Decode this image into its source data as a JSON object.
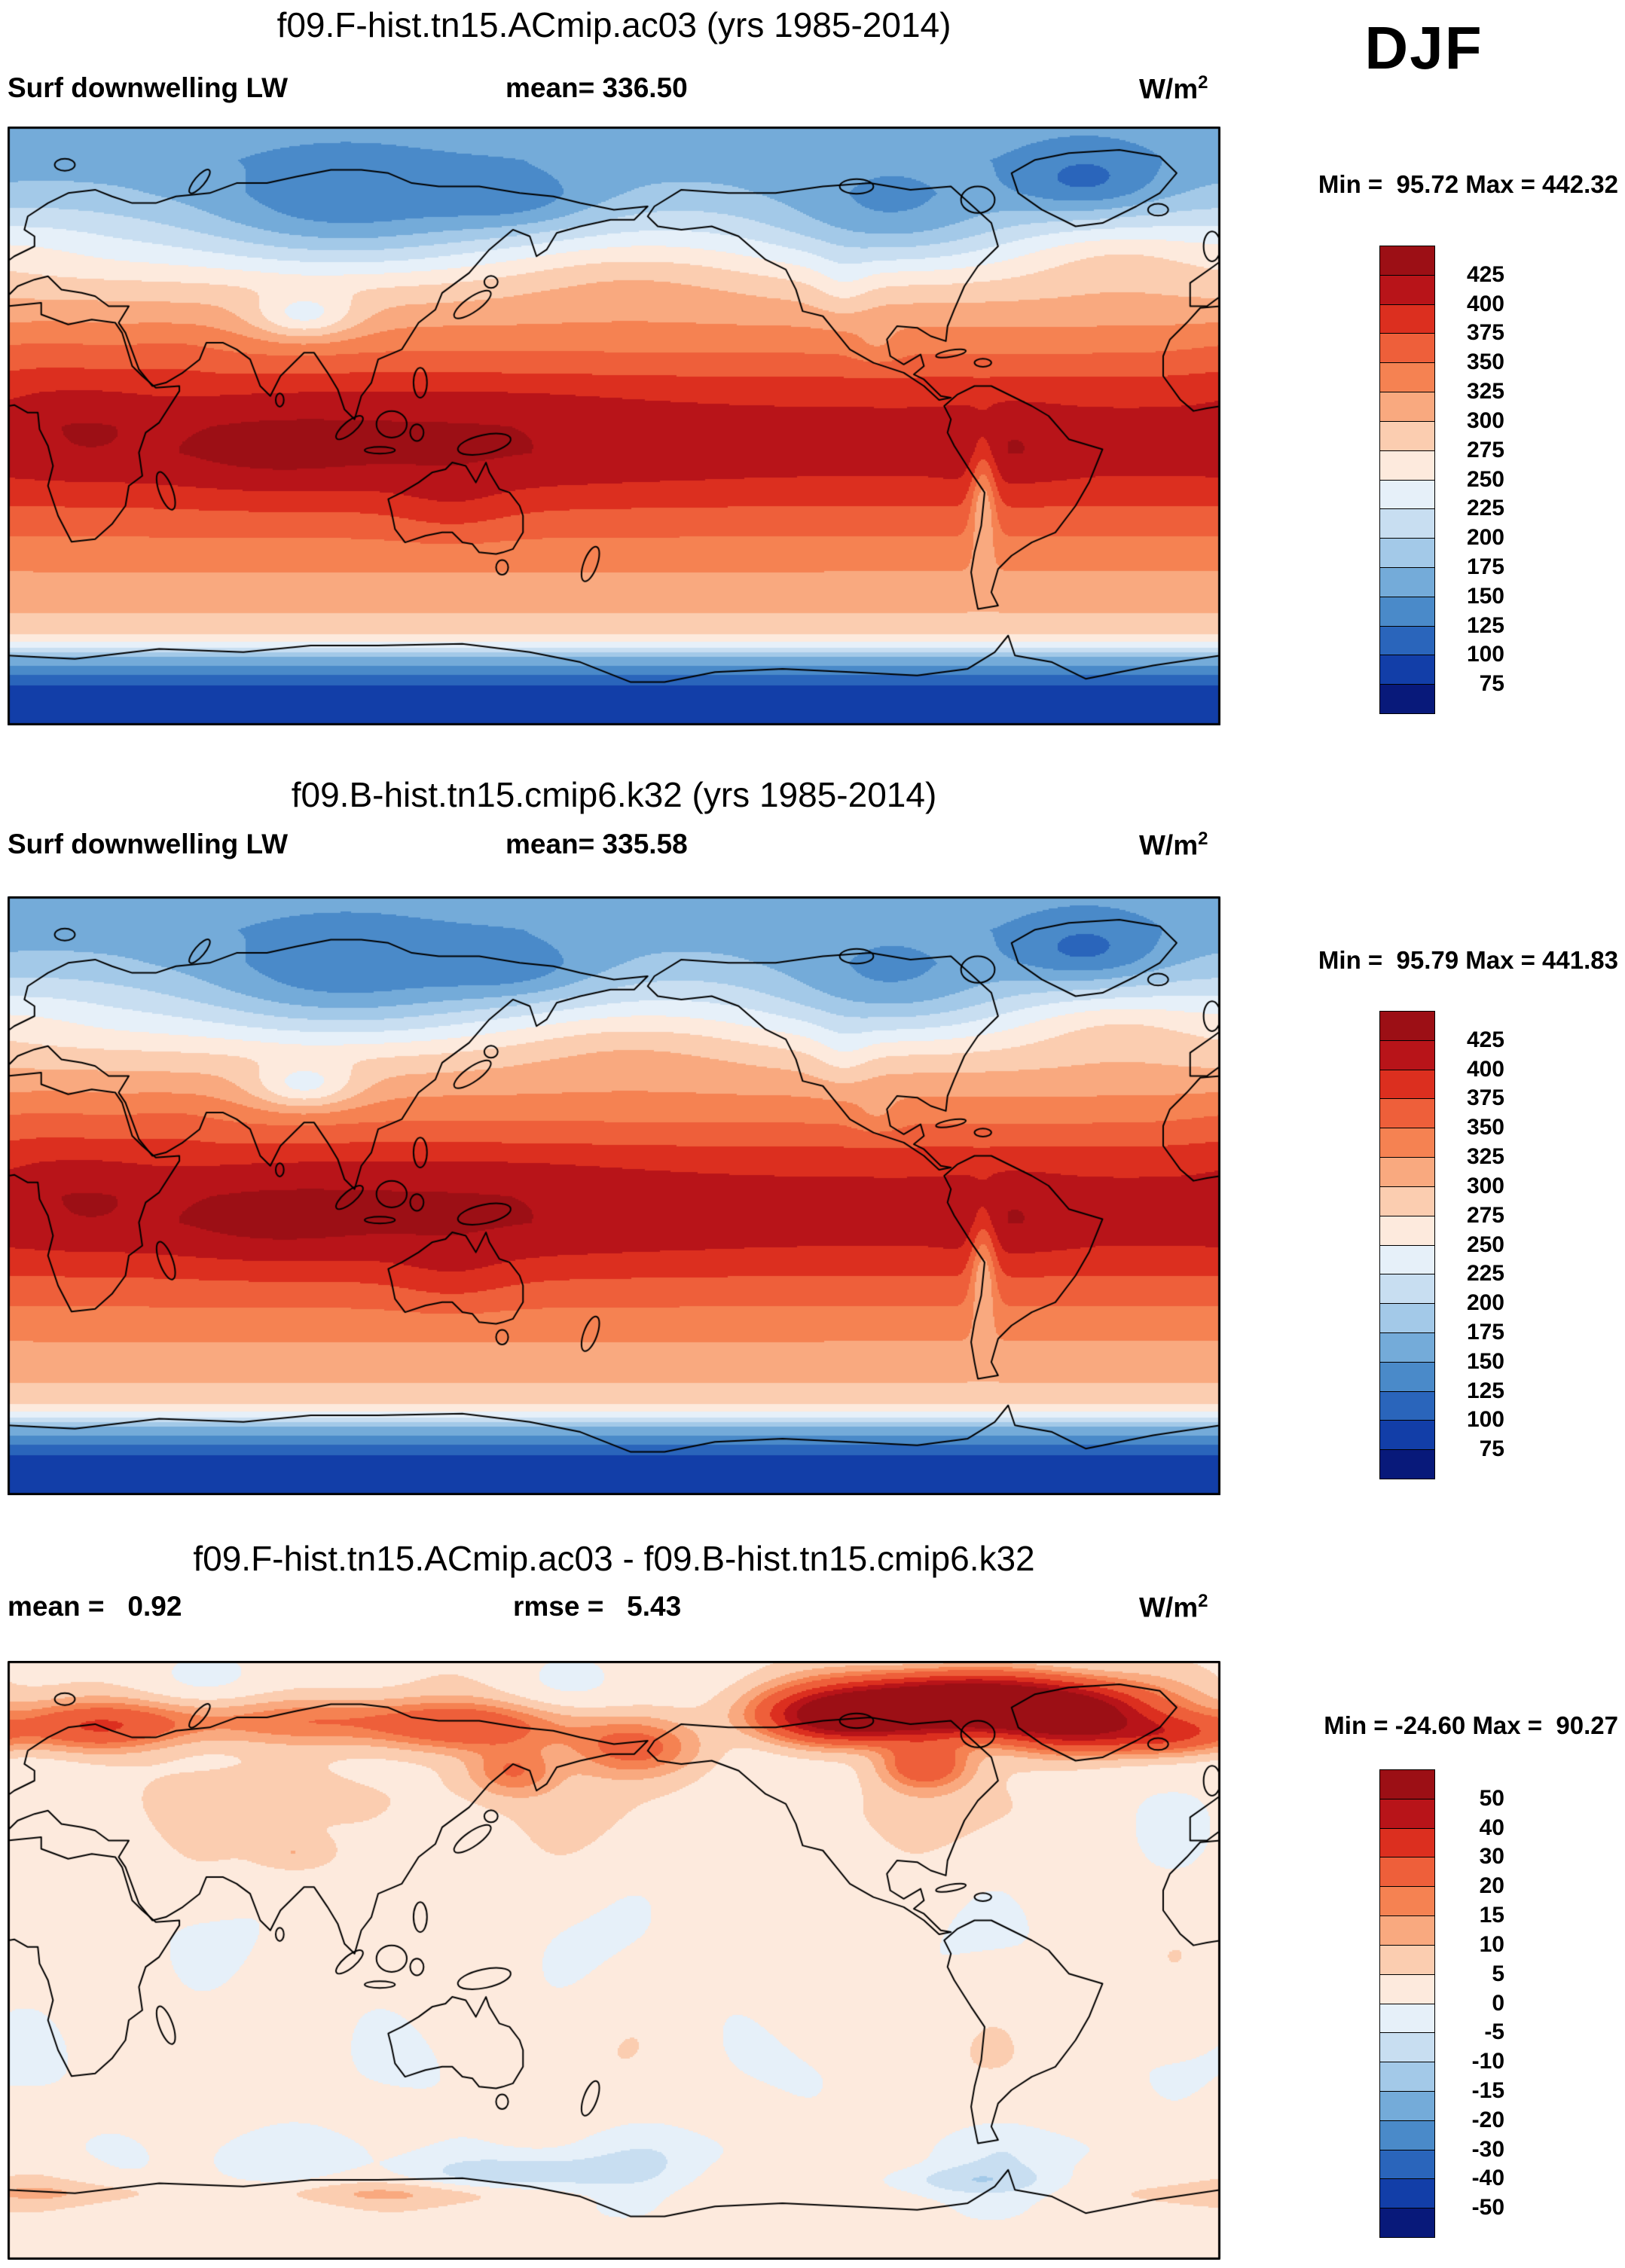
{
  "season": "DJF",
  "palette": [
    "#08197a",
    "#123ea8",
    "#2a65bb",
    "#4a8ac9",
    "#74abd9",
    "#a3c9e8",
    "#c8def1",
    "#e6f0f9",
    "#fdeadd",
    "#fbcdb0",
    "#f9a97f",
    "#f58252",
    "#ee5f3a",
    "#dc2f1f",
    "#b81419",
    "#9c0f15"
  ],
  "panels": [
    {
      "title": "f09.F-hist.tn15.ACmip.ac03 (yrs 1985-2014)",
      "var_label": "Surf downwelling LW",
      "mean_text": "mean= 336.50",
      "units_base": "W/m",
      "units_exp": "2",
      "min_max": "Min =  95.72 Max = 442.32",
      "colorbar_ticks": [
        "425",
        "400",
        "375",
        "350",
        "325",
        "300",
        "275",
        "250",
        "225",
        "200",
        "175",
        "150",
        "125",
        "100",
        "75"
      ]
    },
    {
      "title": "f09.B-hist.tn15.cmip6.k32 (yrs 1985-2014)",
      "var_label": "Surf downwelling LW",
      "mean_text": "mean= 335.58",
      "units_base": "W/m",
      "units_exp": "2",
      "min_max": "Min =  95.79 Max = 441.83",
      "colorbar_ticks": [
        "425",
        "400",
        "375",
        "350",
        "325",
        "300",
        "275",
        "250",
        "225",
        "200",
        "175",
        "150",
        "125",
        "100",
        "75"
      ]
    },
    {
      "title": "f09.F-hist.tn15.ACmip.ac03 - f09.B-hist.tn15.cmip6.k32",
      "mean_text": "mean =   0.92",
      "rmse_text": "rmse =   5.43",
      "units_base": "W/m",
      "units_exp": "2",
      "min_max": "Min = -24.60 Max =  90.27",
      "colorbar_ticks": [
        "50",
        "40",
        "30",
        "20",
        "15",
        "10",
        "5",
        "0",
        "-5",
        "-10",
        "-15",
        "-20",
        "-30",
        "-40",
        "-50"
      ]
    }
  ],
  "chart_data": [
    {
      "type": "heatmap",
      "title": "f09.F-hist.tn15.ACmip.ac03 (yrs 1985-2014)",
      "variable": "Surf downwelling LW",
      "season": "DJF",
      "units": "W/m^2",
      "mean": 336.5,
      "min": 95.72,
      "max": 442.32,
      "levels": [
        75,
        100,
        125,
        150,
        175,
        200,
        225,
        250,
        275,
        300,
        325,
        350,
        375,
        400,
        425
      ],
      "legend_position": "right",
      "projection": "global latitude-longitude, Pacific-centered (0-360E)",
      "description": "Deep blue minima over winter Arctic, Siberia, Canada, Greenland and Antarctica; dark red maxima above 425 W/m^2 across the deep tropics (tropical Africa, Indian Ocean, maritime continent, Amazon)"
    },
    {
      "type": "heatmap",
      "title": "f09.B-hist.tn15.cmip6.k32 (yrs 1985-2014)",
      "variable": "Surf downwelling LW",
      "season": "DJF",
      "units": "W/m^2",
      "mean": 335.58,
      "min": 95.79,
      "max": 441.83,
      "levels": [
        75,
        100,
        125,
        150,
        175,
        200,
        225,
        250,
        275,
        300,
        325,
        350,
        375,
        400,
        425
      ],
      "legend_position": "right",
      "projection": "global latitude-longitude, Pacific-centered (0-360E)",
      "description": "Nearly identical pattern to case A: blue polar minima and dark red tropical maxima"
    },
    {
      "type": "heatmap",
      "title": "f09.F-hist.tn15.ACmip.ac03 - f09.B-hist.tn15.cmip6.k32",
      "variable": "Surf downwelling LW difference",
      "season": "DJF",
      "units": "W/m^2",
      "mean": 0.92,
      "rmse": 5.43,
      "min": -24.6,
      "max": 90.27,
      "levels": [
        -50,
        -40,
        -30,
        -20,
        -15,
        -10,
        -5,
        0,
        5,
        10,
        15,
        20,
        30,
        40,
        50
      ],
      "legend_position": "right",
      "projection": "global latitude-longitude, Pacific-centered (0-360E)",
      "description": "Near-zero differences (pale cream / pale blue) over most of the globe; strong positive anomalies up to +90 W/m^2 over the Arctic, Canadian Archipelago and Greenland; weak negatives near the Antarctic coast"
    }
  ]
}
